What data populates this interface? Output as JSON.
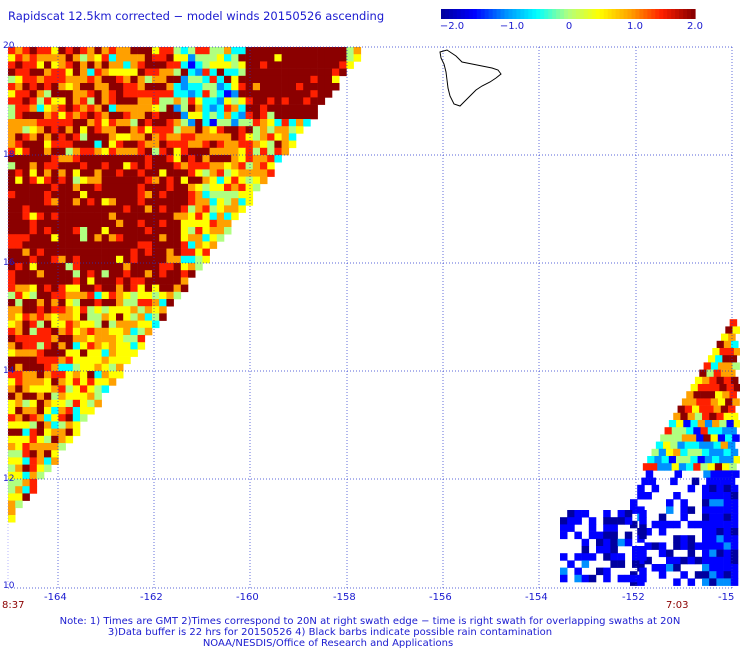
{
  "title": "Rapidscat 12.5km corrected − model winds 20150526 ascending",
  "colorbar": {
    "ticks": [
      "−2.0",
      "−1.0",
      "0",
      "1.0",
      "2.0"
    ],
    "colors": [
      "#0000a0",
      "#0000ff",
      "#0090ff",
      "#00ffff",
      "#b0ff80",
      "#ffff00",
      "#ffa000",
      "#ff2000",
      "#8b0000"
    ]
  },
  "map": {
    "lon_ticks": [
      "-164",
      "-162",
      "-160",
      "-158",
      "-156",
      "-154",
      "-152",
      "-15"
    ],
    "lat_ticks": [
      "20",
      "18",
      "16",
      "14",
      "12",
      "10"
    ],
    "lon_range": [
      -165,
      -150
    ],
    "lat_range": [
      10,
      20
    ],
    "gridlines": "dotted",
    "land": "Hawaii (Big Island) coastline near 19.5N, 155.5W"
  },
  "swath_times": [
    "8:37",
    "7:03"
  ],
  "notes": [
    "Note: 1) Times are GMT 2)Times correspond to 20N at right swath edge − time is right swath for overlapping swaths at 20N",
    "3)Data buffer is 22 hrs for 20150526 4) Black barbs indicate possible rain contamination",
    "NOAA/NESDIS/Office of Research and Applications"
  ]
}
